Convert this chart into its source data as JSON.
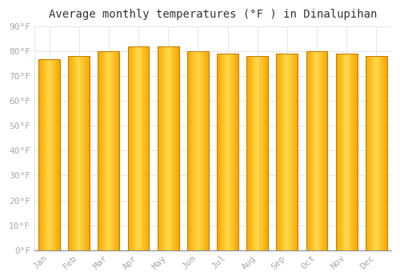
{
  "title": "Average monthly temperatures (°F ) in Dinalupihan",
  "categories": [
    "Jan",
    "Feb",
    "Mar",
    "Apr",
    "May",
    "Jun",
    "Jul",
    "Aug",
    "Sep",
    "Oct",
    "Nov",
    "Dec"
  ],
  "values": [
    77,
    78,
    80,
    82,
    82,
    80,
    79,
    78,
    79,
    80,
    79,
    78
  ],
  "bar_color_left": "#F5A800",
  "bar_color_center": "#FFD94D",
  "bar_color_right": "#E09000",
  "bar_edge_color": "#C87800",
  "background_color": "#FFFFFF",
  "plot_bg_color": "#FFFFFF",
  "ylim": [
    0,
    90
  ],
  "ytick_step": 10,
  "grid_color": "#E0E0E0",
  "title_fontsize": 10,
  "tick_fontsize": 8,
  "tick_color": "#AAAAAA",
  "ylabel_suffix": "°F"
}
